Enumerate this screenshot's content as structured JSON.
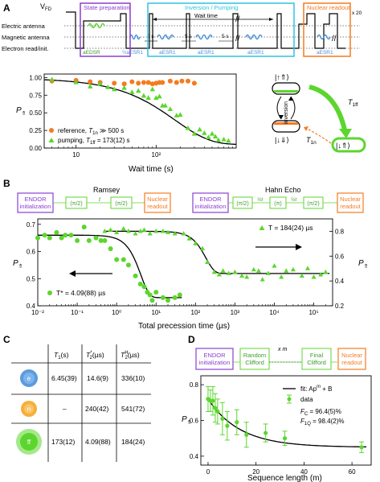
{
  "colors": {
    "green": "#5CD62E",
    "orange": "#F47B20",
    "purple": "#8A3FD1",
    "cyan": "#2EC4E0",
    "blue_wave": "#4A90D9",
    "dark_green": "#3A9E2A",
    "black": "#000000",
    "grey": "#888888"
  },
  "panel_labels": [
    "A",
    "B",
    "C",
    "D"
  ],
  "panel_a": {
    "vfd_label": "V",
    "vfd_sub": "FD",
    "rows": [
      "Electric antenna",
      "Magnetic antenna",
      "Electron read/init."
    ],
    "boxes": [
      {
        "title": "State preparation",
        "color": "#8A3FD1"
      },
      {
        "title": "Inversion / Pumping",
        "color": "#2EC4E0"
      },
      {
        "title": "Nuclear readout",
        "color": "#F47B20"
      }
    ],
    "wait_time": "Wait time",
    "times": [
      "5 s",
      "5 s",
      "5 s"
    ],
    "x20": "x 20",
    "pulses": [
      "aEDSR",
      "½aESR1",
      "aESR1",
      "aESR1",
      "aESR1",
      "aESR1"
    ],
    "diagram": {
      "top_state": "|↑⇑⟩",
      "bottom_state": "|↓⇓⟩",
      "right_state": "|↓⇑⟩",
      "inversion": "inversion",
      "t1ff": "T",
      "t1ff_sub": "1ff",
      "t1n": "T",
      "t1n_sub": "1n"
    }
  },
  "panel_b": {
    "ramsey_title": "Ramsey",
    "hahn_title": "Hahn Echo",
    "endor": [
      "ENDOR",
      "initialization"
    ],
    "nuclear": [
      "Nuclear",
      "readout"
    ],
    "ramsey_pulses": [
      "(π/2)",
      "(π/2)"
    ],
    "ramsey_tau": "t",
    "hahn_pulses": [
      "(π/2)",
      "(π)",
      "(π/2)"
    ],
    "hahn_tau": [
      "½t",
      "½t"
    ],
    "annot_t2star": "T* = 4.09(88) µs",
    "annot_t2h": "T = 184(24) µs"
  },
  "panel_c": {
    "headers": [
      "T₁(s)",
      "T₂*(µs)",
      "T₂H(µs)"
    ],
    "header_parts": [
      {
        "main": "T",
        "sub": "1",
        "sup": "",
        "unit": "(s)"
      },
      {
        "main": "T",
        "sub": "2",
        "sup": "*",
        "unit": "(µs)"
      },
      {
        "main": "T",
        "sub": "2",
        "sup": "H",
        "unit": "(µs)"
      }
    ],
    "rows": [
      {
        "label": "e",
        "color": "#4A90D9",
        "values": [
          "6.45(39)",
          "14.6(9)",
          "336(10)"
        ]
      },
      {
        "label": "n",
        "color": "#F5A623",
        "values": [
          "–",
          "240(42)",
          "541(72)"
        ]
      },
      {
        "label": "ff",
        "color": "#5CD62E",
        "values": [
          "173(12)",
          "4.09(88)",
          "184(24)"
        ]
      }
    ]
  },
  "panel_d": {
    "endor": [
      "ENDOR",
      "initialization"
    ],
    "random": [
      "Random",
      "Clifford"
    ],
    "final": [
      "Final",
      "Clifford"
    ],
    "nuclear": [
      "Nuclear",
      "readout"
    ],
    "xm": "x m",
    "legend_fit": "fit: Ap",
    "legend_fit_sup": "m",
    "legend_fit_tail": " + B",
    "legend_data": "data",
    "fc": "F",
    "fc_sub": "C",
    "fc_val": " = 96.4(5)%",
    "f1q": "F",
    "f1q_sub": "1Q",
    "f1q_val": " = 98.4(2)%"
  },
  "chart_data": [
    {
      "panel": "A",
      "type": "scatter",
      "xlabel": "Wait time (s)",
      "ylabel": "P",
      "ylabel_sub": "⇑",
      "xscale": "log",
      "xlim": [
        4,
        1000
      ],
      "ylim": [
        0,
        1.05
      ],
      "xticks": [
        10,
        100
      ],
      "xticklabels": [
        "10",
        "10²"
      ],
      "yticks": [
        0,
        0.25,
        0.5,
        0.75,
        1.0
      ],
      "yticklabels": [
        "0.00",
        "0.25",
        "0.50",
        "0.75",
        "1.00"
      ],
      "legend_position": "lower-left",
      "series": [
        {
          "name": "reference, T₁ₙ ≫ 500 s",
          "legend_main": "reference, ",
          "legend_t": "T",
          "legend_sub": "1n",
          "legend_tail": " ≫ 500 s",
          "color": "#F47B20",
          "marker": "circle",
          "x": [
            5,
            10,
            15,
            20,
            30,
            40,
            50,
            60,
            70,
            80,
            90,
            100,
            110,
            120,
            150,
            180,
            210,
            250,
            300
          ],
          "y": [
            0.95,
            0.96,
            0.94,
            0.93,
            0.92,
            0.91,
            0.94,
            0.92,
            0.93,
            0.93,
            0.91,
            0.92,
            0.93,
            0.93,
            0.95,
            0.93,
            0.95,
            0.95,
            0.92
          ]
        },
        {
          "name": "pumping, T₁ff = 173(12) s",
          "legend_main": "pumping, ",
          "legend_t": "T",
          "legend_sub": "1ff",
          "legend_tail": " = 173(12) s",
          "color": "#5CD62E",
          "marker": "triangle",
          "x": [
            5,
            10,
            15,
            20,
            25,
            30,
            40,
            50,
            60,
            70,
            80,
            90,
            100,
            110,
            120,
            130,
            150,
            180,
            200,
            250,
            300,
            350,
            400,
            450,
            500,
            550,
            600,
            700,
            800
          ],
          "y": [
            0.97,
            0.93,
            0.87,
            0.91,
            0.86,
            0.83,
            0.85,
            0.79,
            0.81,
            0.74,
            0.71,
            0.83,
            0.71,
            0.73,
            0.6,
            0.6,
            0.55,
            0.46,
            0.47,
            0.28,
            0.2,
            0.26,
            0.21,
            0.15,
            0.2,
            0.16,
            0.11,
            0.12,
            0.1
          ]
        },
        {
          "name": "fit",
          "color": "#000000",
          "marker": "line",
          "model": "exp",
          "params": {
            "A": 0.94,
            "tau": 173,
            "B": 0.05
          }
        }
      ]
    },
    {
      "panel": "B",
      "type": "scatter",
      "xlabel": "Total precession time (µs)",
      "ylabel_left": "P",
      "ylabel_left_sub": "⇑",
      "ylabel_right": "P",
      "ylabel_right_sub": "⇑",
      "xscale": "log",
      "xlim": [
        0.01,
        300000
      ],
      "ylim_left": [
        0.4,
        0.72
      ],
      "ylim_right": [
        0.2,
        0.9
      ],
      "xticks": [
        0.01,
        0.1,
        1,
        10,
        100,
        1000,
        10000,
        100000
      ],
      "xticklabels": [
        "10⁻²",
        "10⁻¹",
        "10⁰",
        "10¹",
        "10²",
        "10³",
        "10⁴",
        "10⁵"
      ],
      "yticks_left": [
        0.4,
        0.5,
        0.6,
        0.7
      ],
      "yticklabels_left": [
        "0.4",
        "0.5",
        "0.6",
        "0.7"
      ],
      "yticks_right": [
        0.2,
        0.4,
        0.6,
        0.8
      ],
      "yticklabels_right": [
        "0.2",
        "0.4",
        "0.6",
        "0.8"
      ],
      "series": [
        {
          "name": "Ramsey",
          "axis": "left",
          "color": "#5CD62E",
          "marker": "circle",
          "x": [
            0.01,
            0.015,
            0.02,
            0.03,
            0.04,
            0.05,
            0.07,
            0.1,
            0.15,
            0.2,
            0.3,
            0.4,
            0.5,
            0.7,
            1,
            1.5,
            2,
            3,
            4,
            5,
            6,
            7,
            8,
            10,
            15,
            20,
            30,
            40
          ],
          "y": [
            0.65,
            0.66,
            0.65,
            0.67,
            0.65,
            0.66,
            0.66,
            0.64,
            0.69,
            0.64,
            0.65,
            0.64,
            0.64,
            0.61,
            0.57,
            0.57,
            0.55,
            0.51,
            0.48,
            0.47,
            0.45,
            0.44,
            0.42,
            0.45,
            0.43,
            0.42,
            0.43,
            0.44
          ]
        },
        {
          "name": "Hahn Echo",
          "axis": "right",
          "color": "#5CD62E",
          "marker": "triangle",
          "x": [
            0.5,
            0.7,
            1,
            1.5,
            2,
            3,
            4,
            5,
            7,
            10,
            15,
            20,
            30,
            50,
            70,
            100,
            150,
            200,
            300,
            400,
            500,
            700,
            1000,
            1500,
            2000,
            3000,
            4000,
            5000,
            7000,
            10000,
            15000,
            20000,
            30000,
            50000,
            70000,
            100000,
            150000,
            200000
          ],
          "y": [
            0.8,
            0.81,
            0.79,
            0.82,
            0.8,
            0.78,
            0.8,
            0.81,
            0.78,
            0.8,
            0.8,
            0.79,
            0.78,
            0.78,
            0.74,
            0.7,
            0.66,
            0.55,
            0.47,
            0.45,
            0.48,
            0.46,
            0.47,
            0.44,
            0.43,
            0.49,
            0.48,
            0.41,
            0.46,
            0.52,
            0.43,
            0.48,
            0.49,
            0.44,
            0.5,
            0.43,
            0.45,
            0.47
          ]
        },
        {
          "name": "Ramsey fit",
          "axis": "left",
          "color": "#000000",
          "marker": "line",
          "model": "gauss",
          "params": {
            "A": 0.23,
            "tau": 4.09,
            "B": 0.43
          }
        },
        {
          "name": "Hahn fit",
          "axis": "right",
          "color": "#000000",
          "marker": "line",
          "model": "gauss",
          "params": {
            "A": 0.34,
            "tau": 184,
            "B": 0.46
          }
        }
      ]
    },
    {
      "panel": "D",
      "type": "scatter",
      "xlabel": "Sequence length (m)",
      "ylabel": "P",
      "ylabel_sub": "⇑",
      "xlim": [
        -3,
        68
      ],
      "ylim": [
        0.35,
        0.85
      ],
      "xticks": [
        0,
        20,
        40,
        60
      ],
      "xticklabels": [
        "0",
        "20",
        "40",
        "60"
      ],
      "yticks": [
        0.4,
        0.6,
        0.8
      ],
      "yticklabels": [
        "0.4",
        "0.6",
        "0.8"
      ],
      "series": [
        {
          "name": "data",
          "color": "#5CD62E",
          "marker": "circle-errorbar",
          "x": [
            0,
            1,
            2,
            3,
            4,
            6,
            8,
            12,
            16,
            24,
            32,
            64
          ],
          "y": [
            0.72,
            0.71,
            0.71,
            0.67,
            0.65,
            0.61,
            0.57,
            0.59,
            0.52,
            0.53,
            0.5,
            0.45
          ],
          "err": [
            0.07,
            0.06,
            0.08,
            0.08,
            0.07,
            0.09,
            0.08,
            0.07,
            0.07,
            0.05,
            0.04,
            0.03
          ]
        },
        {
          "name": "fit: Ap^m + B",
          "color": "#000000",
          "marker": "line",
          "model": "power",
          "params": {
            "A": 0.27,
            "p": 0.928,
            "B": 0.45
          }
        }
      ]
    }
  ]
}
